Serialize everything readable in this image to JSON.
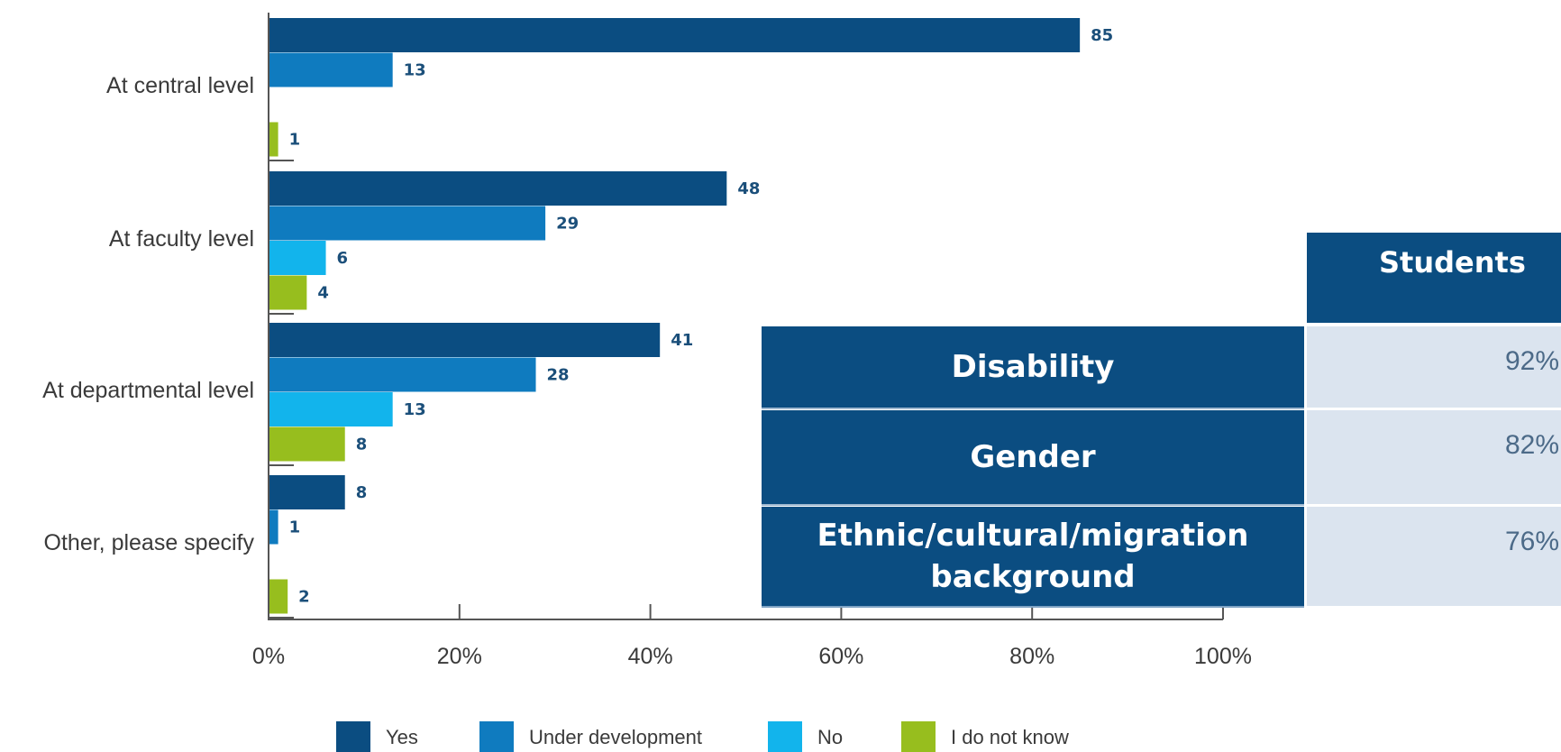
{
  "chart_data": {
    "type": "bar",
    "orientation": "horizontal",
    "categories": [
      "At central level",
      "At faculty level",
      "At departmental level",
      "Other, please specify"
    ],
    "series": [
      {
        "name": "Yes",
        "color": "#0b4d81",
        "values": [
          85,
          48,
          41,
          8
        ]
      },
      {
        "name": "Under development",
        "color": "#0f7bbf",
        "values": [
          13,
          29,
          28,
          1
        ]
      },
      {
        "name": "No",
        "color": "#12b4ec",
        "values": [
          0,
          6,
          13,
          0
        ]
      },
      {
        "name": "I do not know",
        "color": "#97be1e",
        "values": [
          1,
          4,
          8,
          2
        ]
      }
    ],
    "value_labels": [
      [
        "85",
        "13",
        "",
        "1"
      ],
      [
        "48",
        "29",
        "6",
        "4"
      ],
      [
        "41",
        "28",
        "13",
        "8"
      ],
      [
        "8",
        "1",
        "",
        "2"
      ]
    ],
    "x_ticks": [
      "0%",
      "20%",
      "40%",
      "60%",
      "80%",
      "100%"
    ],
    "xlim": [
      0,
      100
    ],
    "legend_position": "bottom",
    "grid": false
  },
  "overlay_table": {
    "header": "Students",
    "rows": [
      {
        "label": "Disability",
        "value": "92%"
      },
      {
        "label": "Gender",
        "value": "82%"
      },
      {
        "label": "Ethnic/cultural/migration background",
        "value": "76%"
      }
    ]
  }
}
